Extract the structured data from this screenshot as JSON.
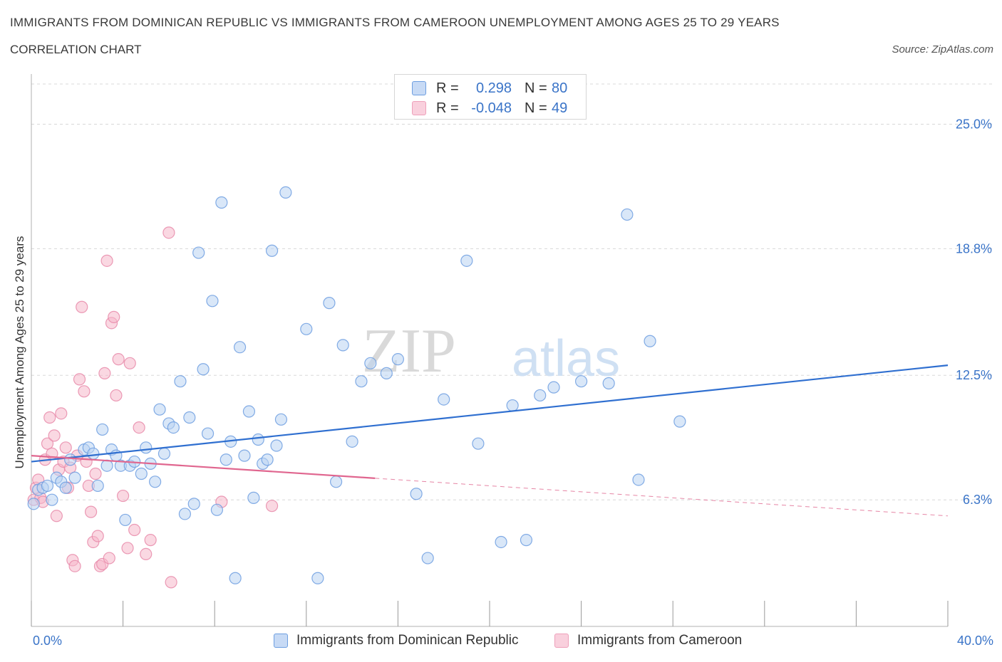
{
  "title": "IMMIGRANTS FROM DOMINICAN REPUBLIC VS IMMIGRANTS FROM CAMEROON UNEMPLOYMENT AMONG AGES 25 TO 29 YEARS",
  "subtitle": "CORRELATION CHART",
  "source": "Source: ZipAtlas.com",
  "watermark": {
    "zip": "ZIP",
    "atlas": "atlas"
  },
  "colors": {
    "blue": "#3a74c8",
    "blue_fill": "#aecbf0",
    "blue_line": "#2f6fd0",
    "pink": "#e0668f",
    "pink_fill": "#f5b8cb",
    "grid": "#d8d8d8",
    "axis": "#999999"
  },
  "legend": {
    "rows": [
      {
        "r_label": "R =",
        "r_value": "0.298",
        "n_label": "N =",
        "n_value": "80",
        "series": "blue"
      },
      {
        "r_label": "R =",
        "r_value": "-0.048",
        "n_label": "N =",
        "n_value": "49",
        "series": "pink"
      }
    ]
  },
  "bottom_legend": [
    "Immigrants from Dominican Republic",
    "Immigrants from Cameroon"
  ],
  "chart_data": {
    "type": "scatter",
    "title": "IMMIGRANTS FROM DOMINICAN REPUBLIC VS IMMIGRANTS FROM CAMEROON UNEMPLOYMENT AMONG AGES 25 TO 29 YEARS",
    "xlabel": "",
    "ylabel": "Unemployment Among Ages 25 to 29 years",
    "xlim": [
      0,
      40
    ],
    "ylim": [
      0,
      27
    ],
    "x_tick_labels": [
      "0.0%",
      "40.0%"
    ],
    "y_ticks": [
      6.3,
      12.5,
      18.8,
      25.0
    ],
    "y_tick_labels": [
      "6.3%",
      "12.5%",
      "18.8%",
      "25.0%"
    ],
    "series": [
      {
        "name": "Immigrants from Dominican Republic",
        "color": "blue",
        "points": [
          [
            0.1,
            6.1
          ],
          [
            0.3,
            6.8
          ],
          [
            0.5,
            6.9
          ],
          [
            0.7,
            7.0
          ],
          [
            0.9,
            6.3
          ],
          [
            1.1,
            7.4
          ],
          [
            1.3,
            7.2
          ],
          [
            1.5,
            6.9
          ],
          [
            1.7,
            8.3
          ],
          [
            1.9,
            7.4
          ],
          [
            2.3,
            8.8
          ],
          [
            2.5,
            8.9
          ],
          [
            2.7,
            8.6
          ],
          [
            2.9,
            7.0
          ],
          [
            3.1,
            9.8
          ],
          [
            3.3,
            8.0
          ],
          [
            3.5,
            8.8
          ],
          [
            3.7,
            8.5
          ],
          [
            3.9,
            8.0
          ],
          [
            4.1,
            5.3
          ],
          [
            4.3,
            8.0
          ],
          [
            4.5,
            8.2
          ],
          [
            4.8,
            7.6
          ],
          [
            5.0,
            8.9
          ],
          [
            5.2,
            8.1
          ],
          [
            5.4,
            7.2
          ],
          [
            5.6,
            10.8
          ],
          [
            5.8,
            8.6
          ],
          [
            6.0,
            10.1
          ],
          [
            6.2,
            9.9
          ],
          [
            6.5,
            12.2
          ],
          [
            6.7,
            5.6
          ],
          [
            6.9,
            10.4
          ],
          [
            7.1,
            6.1
          ],
          [
            7.3,
            18.6
          ],
          [
            7.5,
            12.8
          ],
          [
            7.7,
            9.6
          ],
          [
            7.9,
            16.2
          ],
          [
            8.1,
            5.8
          ],
          [
            8.3,
            21.1
          ],
          [
            8.5,
            8.3
          ],
          [
            8.7,
            9.2
          ],
          [
            8.9,
            2.4
          ],
          [
            9.1,
            13.9
          ],
          [
            9.3,
            8.5
          ],
          [
            9.5,
            10.7
          ],
          [
            9.7,
            6.4
          ],
          [
            9.9,
            9.3
          ],
          [
            10.1,
            8.1
          ],
          [
            10.3,
            8.3
          ],
          [
            10.5,
            18.7
          ],
          [
            10.7,
            9.0
          ],
          [
            10.9,
            10.3
          ],
          [
            11.1,
            21.6
          ],
          [
            12.0,
            14.8
          ],
          [
            12.5,
            2.4
          ],
          [
            13.0,
            16.1
          ],
          [
            13.3,
            7.2
          ],
          [
            13.6,
            14.0
          ],
          [
            14.0,
            9.2
          ],
          [
            14.4,
            12.2
          ],
          [
            14.8,
            13.1
          ],
          [
            15.5,
            12.6
          ],
          [
            16.0,
            13.3
          ],
          [
            16.8,
            6.6
          ],
          [
            17.3,
            3.4
          ],
          [
            18.0,
            11.3
          ],
          [
            19.0,
            18.2
          ],
          [
            19.5,
            9.1
          ],
          [
            20.5,
            4.2
          ],
          [
            21.0,
            11.0
          ],
          [
            21.6,
            4.3
          ],
          [
            22.2,
            11.5
          ],
          [
            22.8,
            11.9
          ],
          [
            24.0,
            12.2
          ],
          [
            25.2,
            12.1
          ],
          [
            26.0,
            20.5
          ],
          [
            26.5,
            7.3
          ],
          [
            27.0,
            14.2
          ],
          [
            28.3,
            10.2
          ]
        ],
        "trend": {
          "x": [
            0,
            40
          ],
          "y": [
            8.2,
            13.0
          ]
        }
      },
      {
        "name": "Immigrants from Cameroon",
        "color": "pink",
        "points": [
          [
            0.1,
            6.3
          ],
          [
            0.2,
            6.9
          ],
          [
            0.3,
            7.3
          ],
          [
            0.4,
            6.4
          ],
          [
            0.5,
            6.2
          ],
          [
            0.6,
            8.3
          ],
          [
            0.7,
            9.1
          ],
          [
            0.8,
            10.4
          ],
          [
            0.9,
            8.6
          ],
          [
            1.0,
            9.5
          ],
          [
            1.1,
            5.5
          ],
          [
            1.2,
            7.8
          ],
          [
            1.3,
            10.6
          ],
          [
            1.4,
            8.2
          ],
          [
            1.5,
            8.9
          ],
          [
            1.6,
            6.9
          ],
          [
            1.7,
            7.9
          ],
          [
            1.8,
            3.3
          ],
          [
            1.9,
            3.0
          ],
          [
            2.0,
            8.5
          ],
          [
            2.1,
            12.3
          ],
          [
            2.2,
            15.9
          ],
          [
            2.3,
            11.7
          ],
          [
            2.4,
            8.2
          ],
          [
            2.5,
            7.0
          ],
          [
            2.6,
            5.7
          ],
          [
            2.7,
            4.2
          ],
          [
            2.8,
            7.6
          ],
          [
            2.9,
            4.5
          ],
          [
            3.0,
            3.0
          ],
          [
            3.1,
            3.1
          ],
          [
            3.2,
            12.6
          ],
          [
            3.3,
            18.2
          ],
          [
            3.4,
            3.4
          ],
          [
            3.5,
            15.1
          ],
          [
            3.6,
            15.4
          ],
          [
            3.7,
            11.5
          ],
          [
            3.8,
            13.3
          ],
          [
            4.0,
            6.5
          ],
          [
            4.2,
            3.9
          ],
          [
            4.3,
            13.1
          ],
          [
            4.5,
            4.8
          ],
          [
            4.7,
            9.9
          ],
          [
            5.0,
            3.6
          ],
          [
            5.2,
            4.3
          ],
          [
            6.0,
            19.6
          ],
          [
            6.1,
            2.2
          ],
          [
            8.3,
            6.2
          ],
          [
            10.5,
            6.0
          ]
        ],
        "trend": {
          "x": [
            0,
            40
          ],
          "y": [
            8.5,
            5.5
          ]
        },
        "trend_solid_until": 15
      }
    ]
  }
}
